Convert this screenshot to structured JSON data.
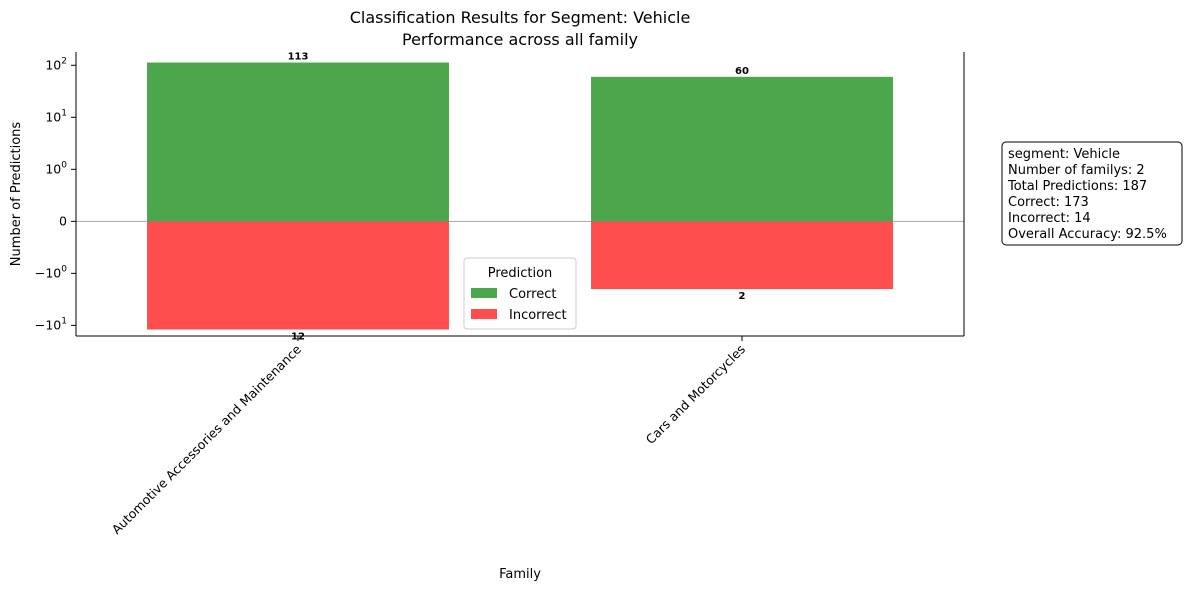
{
  "chart_data": {
    "type": "bar",
    "title_line1": "Classification Results for Segment: Vehicle",
    "title_line2": "Performance across all family",
    "xlabel": "Family",
    "ylabel": "Number of Predictions",
    "yscale": "symlog",
    "y_ticks": [
      {
        "value": 100,
        "base": "10",
        "exp": "2"
      },
      {
        "value": 10,
        "base": "10",
        "exp": "1"
      },
      {
        "value": 1,
        "base": "10",
        "exp": "0"
      },
      {
        "value": 0,
        "text": "0"
      },
      {
        "value": -1,
        "base": "−10",
        "exp": "0"
      },
      {
        "value": -10,
        "base": "−10",
        "exp": "1"
      }
    ],
    "ylim": [
      -16,
      180
    ],
    "categories": [
      "Automotive Accessories and Maintenance",
      "Cars and Motorcycles"
    ],
    "series": [
      {
        "name": "Correct",
        "color": "#4ca64c",
        "values": [
          113,
          60
        ],
        "labels": [
          "113",
          "60"
        ]
      },
      {
        "name": "Incorrect",
        "color": "#ff4c4c",
        "values": [
          -12,
          -2
        ],
        "labels": [
          "12",
          "2"
        ]
      }
    ],
    "legend": {
      "title": "Prediction",
      "placement": "lower-center"
    },
    "zero_line": true,
    "info_box": [
      "segment: Vehicle",
      "Number of familys: 2",
      "Total Predictions: 187",
      "Correct: 173",
      "Incorrect: 14",
      "Overall Accuracy: 92.5%"
    ]
  }
}
